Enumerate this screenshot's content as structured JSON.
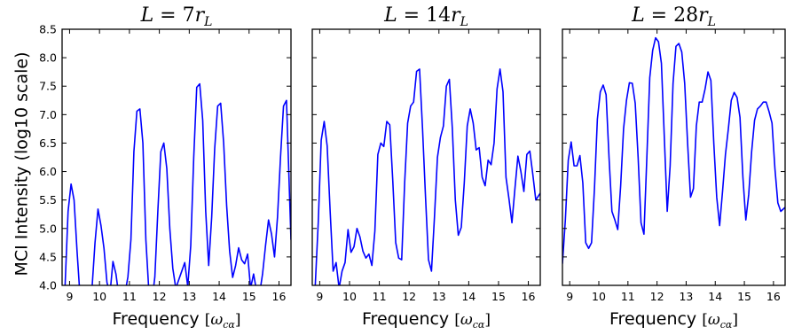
{
  "chart_data": {
    "type": "line",
    "shared": {
      "ylabel": "MCI Intensity (log10 scale)",
      "xlabel_text": "Frequency",
      "xlabel_unit_open": "[",
      "xlabel_unit_symbol": "ω",
      "xlabel_unit_sub": "cα",
      "xlabel_unit_close": "]",
      "xlim": [
        8.75,
        16.4
      ],
      "ylim": [
        4.0,
        8.5
      ],
      "xticks": [
        9,
        10,
        11,
        12,
        13,
        14,
        15,
        16
      ],
      "yticks": [
        4.0,
        4.5,
        5.0,
        5.5,
        6.0,
        6.5,
        7.0,
        7.5,
        8.0,
        8.5
      ],
      "line_color": "#0000ff",
      "grid": false
    },
    "panels": [
      {
        "title_lhs": "L",
        "title_eq": " = ",
        "title_num": "7",
        "title_r": "r",
        "title_sub": "L",
        "x": [
          8.75,
          8.85,
          8.95,
          9.05,
          9.15,
          9.25,
          9.35,
          9.45,
          9.55,
          9.65,
          9.75,
          9.85,
          9.95,
          10.05,
          10.15,
          10.25,
          10.35,
          10.45,
          10.55,
          10.65,
          10.75,
          10.85,
          10.95,
          11.05,
          11.15,
          11.25,
          11.35,
          11.45,
          11.55,
          11.65,
          11.75,
          11.85,
          11.95,
          12.05,
          12.15,
          12.25,
          12.35,
          12.45,
          12.55,
          12.65,
          12.75,
          12.85,
          12.95,
          13.05,
          13.15,
          13.25,
          13.35,
          13.45,
          13.55,
          13.65,
          13.75,
          13.85,
          13.95,
          14.05,
          14.15,
          14.25,
          14.35,
          14.45,
          14.55,
          14.65,
          14.75,
          14.85,
          14.95,
          15.05,
          15.15,
          15.25,
          15.35,
          15.45,
          15.55,
          15.65,
          15.75,
          15.85,
          15.95,
          16.05,
          16.15,
          16.25,
          16.4
        ],
        "values": [
          3.9,
          4.0,
          5.3,
          5.78,
          5.5,
          4.6,
          3.8,
          3.7,
          3.8,
          3.9,
          3.95,
          4.75,
          5.34,
          5.05,
          4.65,
          4.05,
          3.85,
          4.42,
          4.2,
          3.8,
          3.7,
          3.85,
          4.15,
          4.8,
          6.35,
          7.06,
          7.1,
          6.5,
          4.8,
          3.9,
          3.7,
          4.15,
          5.3,
          6.35,
          6.5,
          6.05,
          5.0,
          4.3,
          3.95,
          4.1,
          4.25,
          4.4,
          3.98,
          4.7,
          6.25,
          7.48,
          7.54,
          6.9,
          5.3,
          4.35,
          5.2,
          6.4,
          7.15,
          7.2,
          6.5,
          5.4,
          4.6,
          4.14,
          4.35,
          4.66,
          4.45,
          4.38,
          4.55,
          3.95,
          4.2,
          3.9,
          3.85,
          4.2,
          4.7,
          5.15,
          4.9,
          4.5,
          5.2,
          6.25,
          7.15,
          7.25,
          4.8
        ],
        "extra": {
          "x_tail": [
            16.3,
            16.35,
            16.4
          ],
          "y_tail": [
            6.2,
            4.22,
            4.8
          ]
        }
      },
      {
        "title_lhs": "L",
        "title_eq": " = ",
        "title_num": "14",
        "title_r": "r",
        "title_sub": "L",
        "x": [
          8.75,
          8.85,
          8.95,
          9.05,
          9.15,
          9.25,
          9.35,
          9.45,
          9.55,
          9.65,
          9.75,
          9.85,
          9.95,
          10.05,
          10.15,
          10.25,
          10.35,
          10.45,
          10.55,
          10.65,
          10.75,
          10.85,
          10.95,
          11.05,
          11.15,
          11.25,
          11.35,
          11.45,
          11.55,
          11.65,
          11.75,
          11.85,
          11.95,
          12.05,
          12.15,
          12.25,
          12.35,
          12.45,
          12.55,
          12.65,
          12.75,
          12.85,
          12.95,
          13.05,
          13.15,
          13.25,
          13.35,
          13.45,
          13.55,
          13.65,
          13.75,
          13.85,
          13.95,
          14.05,
          14.15,
          14.25,
          14.35,
          14.45,
          14.55,
          14.65,
          14.75,
          14.85,
          14.95,
          15.05,
          15.15,
          15.25,
          15.35,
          15.45,
          15.55,
          15.65,
          15.75,
          15.85,
          15.95,
          16.05,
          16.15,
          16.25,
          16.4
        ],
        "values": [
          3.9,
          4.0,
          5.1,
          6.55,
          6.88,
          6.45,
          5.3,
          4.25,
          4.4,
          3.95,
          4.25,
          4.4,
          4.98,
          4.58,
          4.68,
          5.0,
          4.85,
          4.6,
          4.48,
          4.55,
          4.35,
          4.95,
          6.3,
          6.5,
          6.44,
          6.88,
          6.82,
          5.85,
          4.75,
          4.48,
          4.45,
          5.8,
          6.85,
          7.15,
          7.22,
          7.76,
          7.8,
          6.75,
          5.55,
          4.45,
          4.25,
          5.2,
          6.25,
          6.6,
          6.8,
          7.5,
          7.62,
          6.75,
          5.5,
          4.88,
          5.02,
          5.8,
          6.8,
          7.1,
          6.85,
          6.38,
          6.42,
          5.9,
          5.75,
          6.2,
          6.12,
          6.5,
          7.45,
          7.8,
          7.4,
          5.9,
          5.52,
          5.1,
          5.7,
          6.27,
          6.0,
          5.65,
          6.3,
          6.36,
          5.95,
          5.5,
          5.62
        ]
      },
      {
        "title_lhs": "L",
        "title_eq": " = ",
        "title_num": "28",
        "title_r": "r",
        "title_sub": "L",
        "x": [
          8.75,
          8.85,
          8.95,
          9.05,
          9.15,
          9.25,
          9.35,
          9.45,
          9.55,
          9.65,
          9.75,
          9.85,
          9.95,
          10.05,
          10.15,
          10.25,
          10.35,
          10.45,
          10.55,
          10.65,
          10.75,
          10.85,
          10.95,
          11.05,
          11.15,
          11.25,
          11.35,
          11.45,
          11.55,
          11.65,
          11.75,
          11.85,
          11.95,
          12.05,
          12.15,
          12.25,
          12.35,
          12.45,
          12.55,
          12.65,
          12.75,
          12.85,
          12.95,
          13.05,
          13.15,
          13.25,
          13.35,
          13.45,
          13.55,
          13.65,
          13.75,
          13.85,
          13.95,
          14.05,
          14.15,
          14.25,
          14.35,
          14.45,
          14.55,
          14.65,
          14.75,
          14.85,
          14.95,
          15.05,
          15.15,
          15.25,
          15.35,
          15.45,
          15.55,
          15.65,
          15.75,
          15.85,
          15.95,
          16.05,
          16.15,
          16.25,
          16.4
        ],
        "values": [
          4.38,
          5.15,
          6.2,
          6.52,
          6.1,
          6.1,
          6.28,
          5.8,
          4.75,
          4.65,
          4.75,
          5.7,
          6.92,
          7.4,
          7.52,
          7.35,
          6.25,
          5.3,
          5.15,
          4.98,
          5.75,
          6.75,
          7.25,
          7.56,
          7.55,
          7.2,
          6.25,
          5.1,
          4.9,
          6.25,
          7.65,
          8.13,
          8.35,
          8.28,
          7.9,
          6.6,
          5.3,
          6.1,
          7.55,
          8.2,
          8.25,
          8.1,
          7.55,
          6.5,
          5.55,
          5.7,
          6.8,
          7.22,
          7.22,
          7.45,
          7.75,
          7.6,
          6.5,
          5.55,
          5.05,
          5.65,
          6.3,
          6.75,
          7.25,
          7.39,
          7.3,
          6.95,
          5.9,
          5.15,
          5.6,
          6.35,
          6.9,
          7.1,
          7.15,
          7.22,
          7.22,
          7.05,
          6.85,
          6.05,
          5.45,
          5.3,
          5.37
        ]
      }
    ]
  }
}
